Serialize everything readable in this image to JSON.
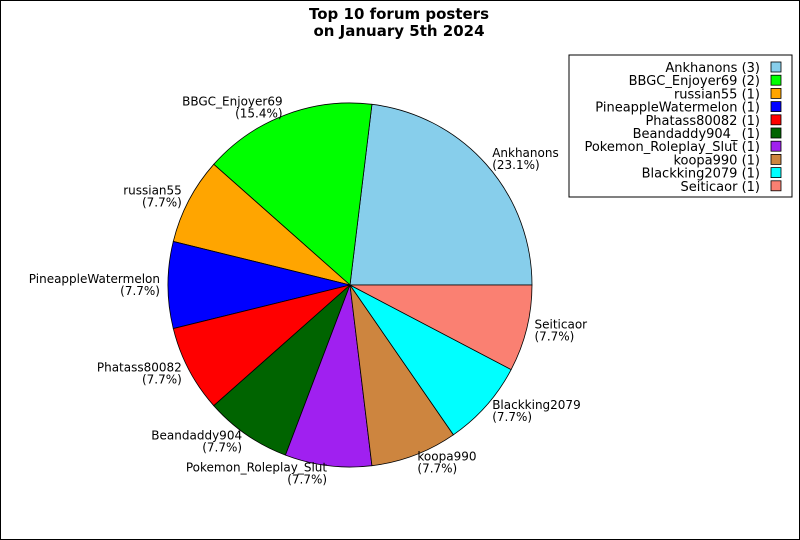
{
  "chart_data": {
    "type": "pie",
    "title_lines": [
      "Top 10 forum posters",
      "on January 5th 2024"
    ],
    "slices": [
      {
        "name": "Ankhanons",
        "count": 3,
        "percent_label": "(23.1%)",
        "color": "#87ceeb",
        "legend_label": "Ankhanons (3)"
      },
      {
        "name": "BBGC_Enjoyer69",
        "count": 2,
        "percent_label": "(15.4%)",
        "color": "#00ff00",
        "legend_label": "BBGC_Enjoyer69 (2)"
      },
      {
        "name": "russian55",
        "count": 1,
        "percent_label": "(7.7%)",
        "color": "#ffa500",
        "legend_label": "russian55 (1)"
      },
      {
        "name": "PineappleWatermelon",
        "count": 1,
        "percent_label": "(7.7%)",
        "color": "#0000ff",
        "legend_label": "PineappleWatermelon (1)"
      },
      {
        "name": "Phatass80082",
        "count": 1,
        "percent_label": "(7.7%)",
        "color": "#ff0000",
        "legend_label": "Phatass80082 (1)"
      },
      {
        "name": "Beandaddy904_",
        "count": 1,
        "percent_label": "(7.7%)",
        "color": "#006400",
        "legend_label": "Beandaddy904_ (1)"
      },
      {
        "name": "Pokemon_Roleplay_Slut",
        "count": 1,
        "percent_label": "(7.7%)",
        "color": "#a020f0",
        "legend_label": "Pokemon_Roleplay_Slut (1)"
      },
      {
        "name": "koopa990",
        "count": 1,
        "percent_label": "(7.7%)",
        "color": "#cd853f",
        "legend_label": "koopa990 (1)"
      },
      {
        "name": "Blackking2079",
        "count": 1,
        "percent_label": "(7.7%)",
        "color": "#00ffff",
        "legend_label": "Blackking2079 (1)"
      },
      {
        "name": "Seiticaor",
        "count": 1,
        "percent_label": "(7.7%)",
        "color": "#fa8072",
        "legend_label": "Seiticaor (1)"
      }
    ],
    "legend_position": "top-right"
  }
}
